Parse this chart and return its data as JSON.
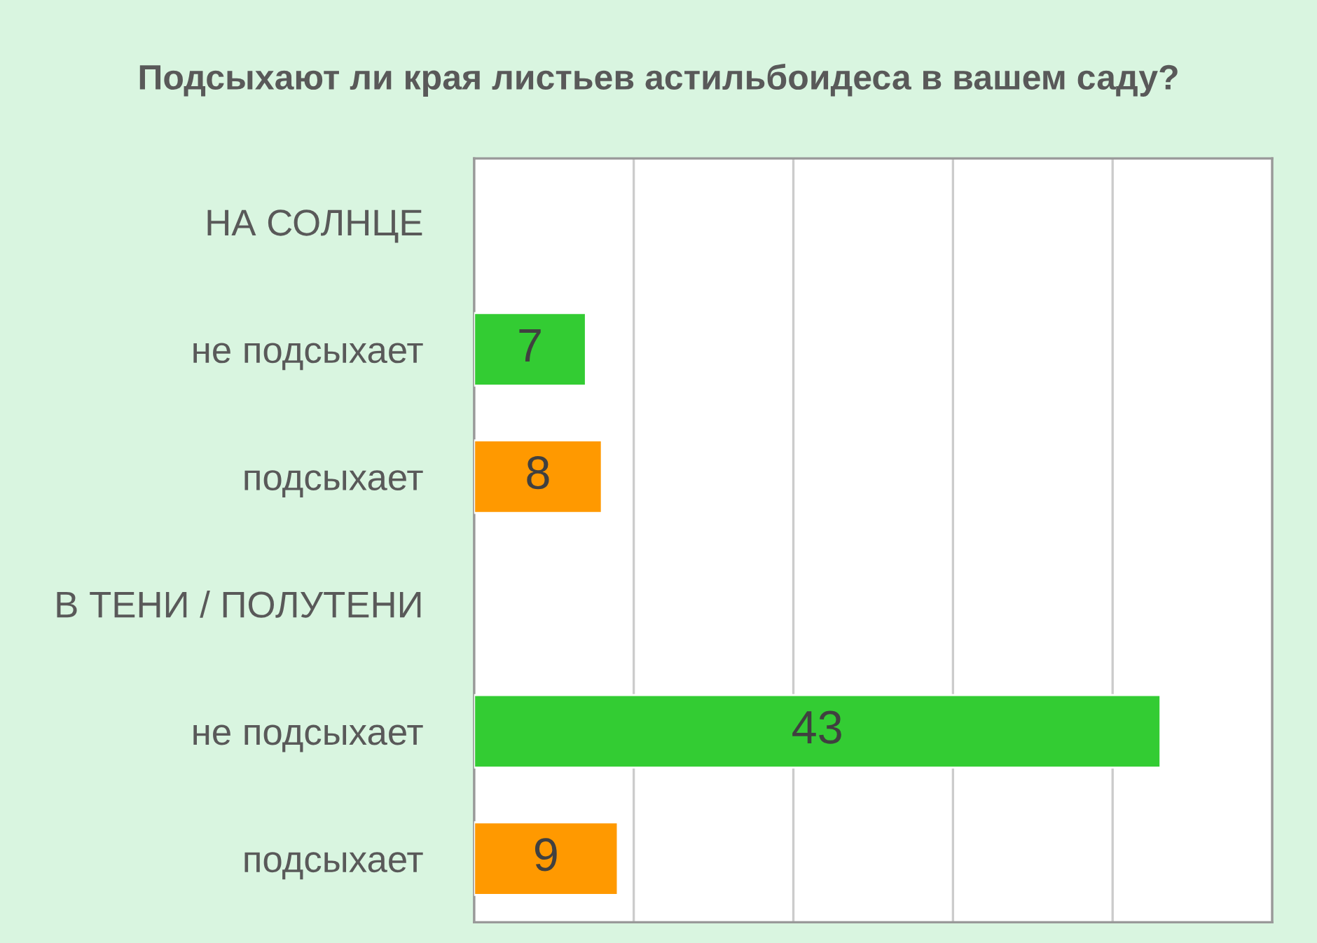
{
  "chart_data": {
    "type": "bar",
    "orientation": "horizontal",
    "title": "Подсыхают ли края листьев астильбоидеса в вашем саду?",
    "categories": [
      "НА СОЛНЦЕ",
      "не подсыхает",
      "подсыхает",
      "В ТЕНИ / ПОЛУТЕНИ",
      "не подсыхает",
      "подсыхает"
    ],
    "values": [
      null,
      7,
      8,
      null,
      43,
      9
    ],
    "colors": [
      null,
      "#33cc33",
      "#ff9900",
      null,
      "#33cc33",
      "#ff9900"
    ],
    "xlim": [
      0,
      50
    ],
    "xticks": [
      {
        "value": 0,
        "label": null
      },
      {
        "value": 10,
        "label": null
      },
      {
        "value": 20,
        "label": null
      },
      {
        "value": 30,
        "label": null
      },
      {
        "value": 40,
        "label": null
      },
      {
        "value": 50,
        "label": null
      }
    ],
    "tick_labels": "y",
    "grid": "x",
    "data_labels": true,
    "legend": false
  }
}
